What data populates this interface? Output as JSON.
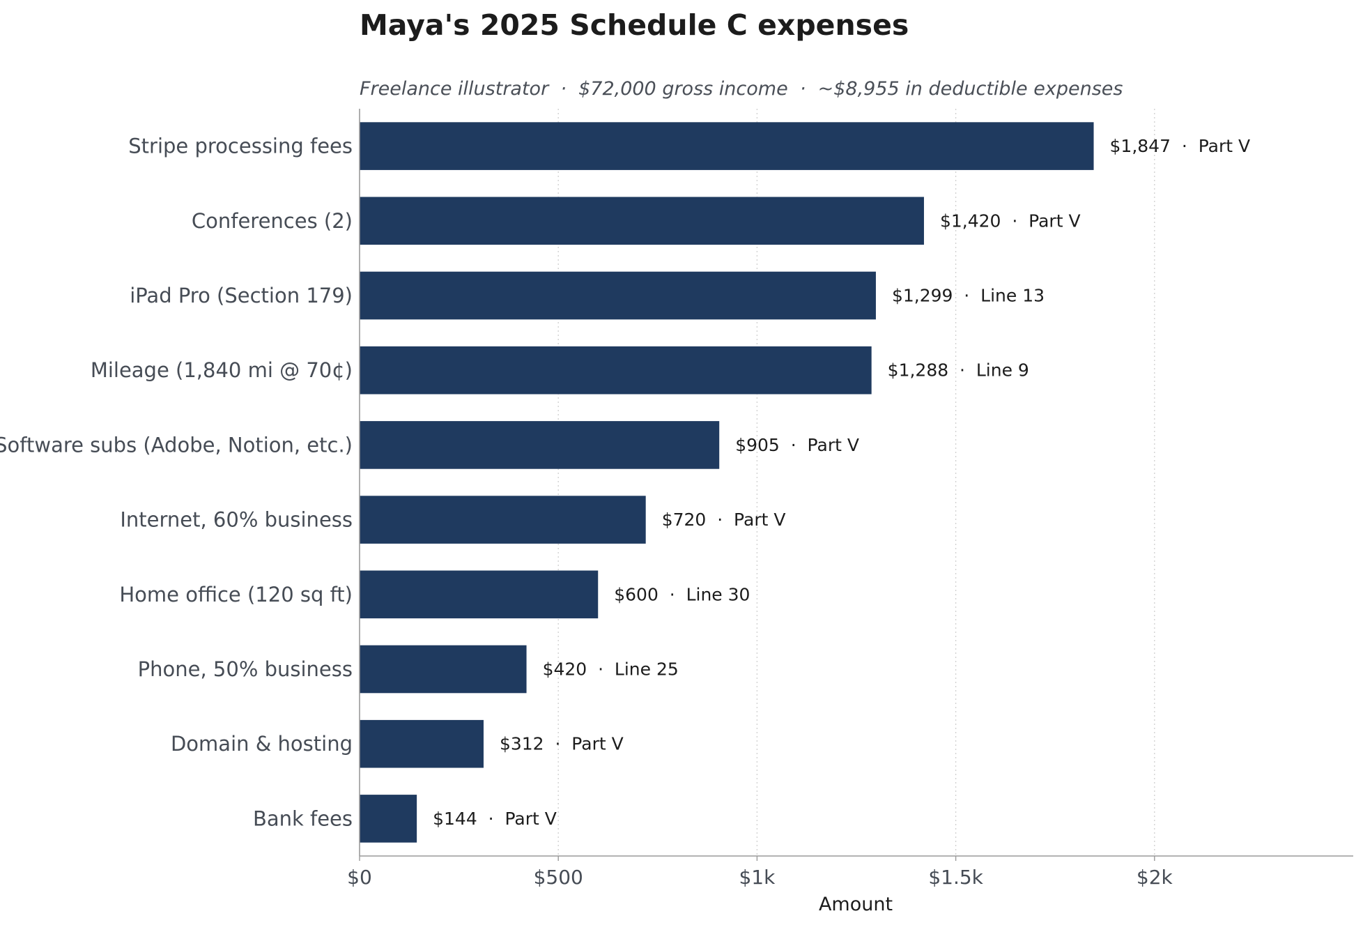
{
  "chart_data": {
    "type": "bar",
    "orientation": "horizontal",
    "title": "Maya's 2025 Schedule C expenses",
    "subtitle": "Freelance illustrator  ·  $72,000 gross income  ·  ~$8,955 in deductible expenses",
    "xlabel": "Amount",
    "ylabel": "",
    "xlim": [
      0,
      2500
    ],
    "x_ticks": [
      0,
      500,
      1000,
      1500,
      2000
    ],
    "x_tick_labels": [
      "$0",
      "$500",
      "$1k",
      "$1.5k",
      "$2k"
    ],
    "grid": "vertical dotted",
    "legend": "none",
    "bar_color": "#1f3a5f",
    "categories": [
      "Stripe processing fees",
      "Conferences (2)",
      "iPad Pro (Section 179)",
      "Mileage (1,840 mi @ 70¢)",
      "Software subs (Adobe, Notion, etc.)",
      "Internet, 60% business",
      "Home office (120 sq ft)",
      "Phone, 50% business",
      "Domain & hosting",
      "Bank fees"
    ],
    "values": [
      1847,
      1420,
      1299,
      1288,
      905,
      720,
      600,
      420,
      312,
      144
    ],
    "data_labels": [
      "$1,847  ·  Part V",
      "$1,420  ·  Part V",
      "$1,299  ·  Line 13",
      "$1,288  ·  Line 9",
      "$905  ·  Part V",
      "$720  ·  Part V",
      "$600  ·  Line 30",
      "$420  ·  Line 25",
      "$312  ·  Part V",
      "$144  ·  Part V"
    ]
  }
}
